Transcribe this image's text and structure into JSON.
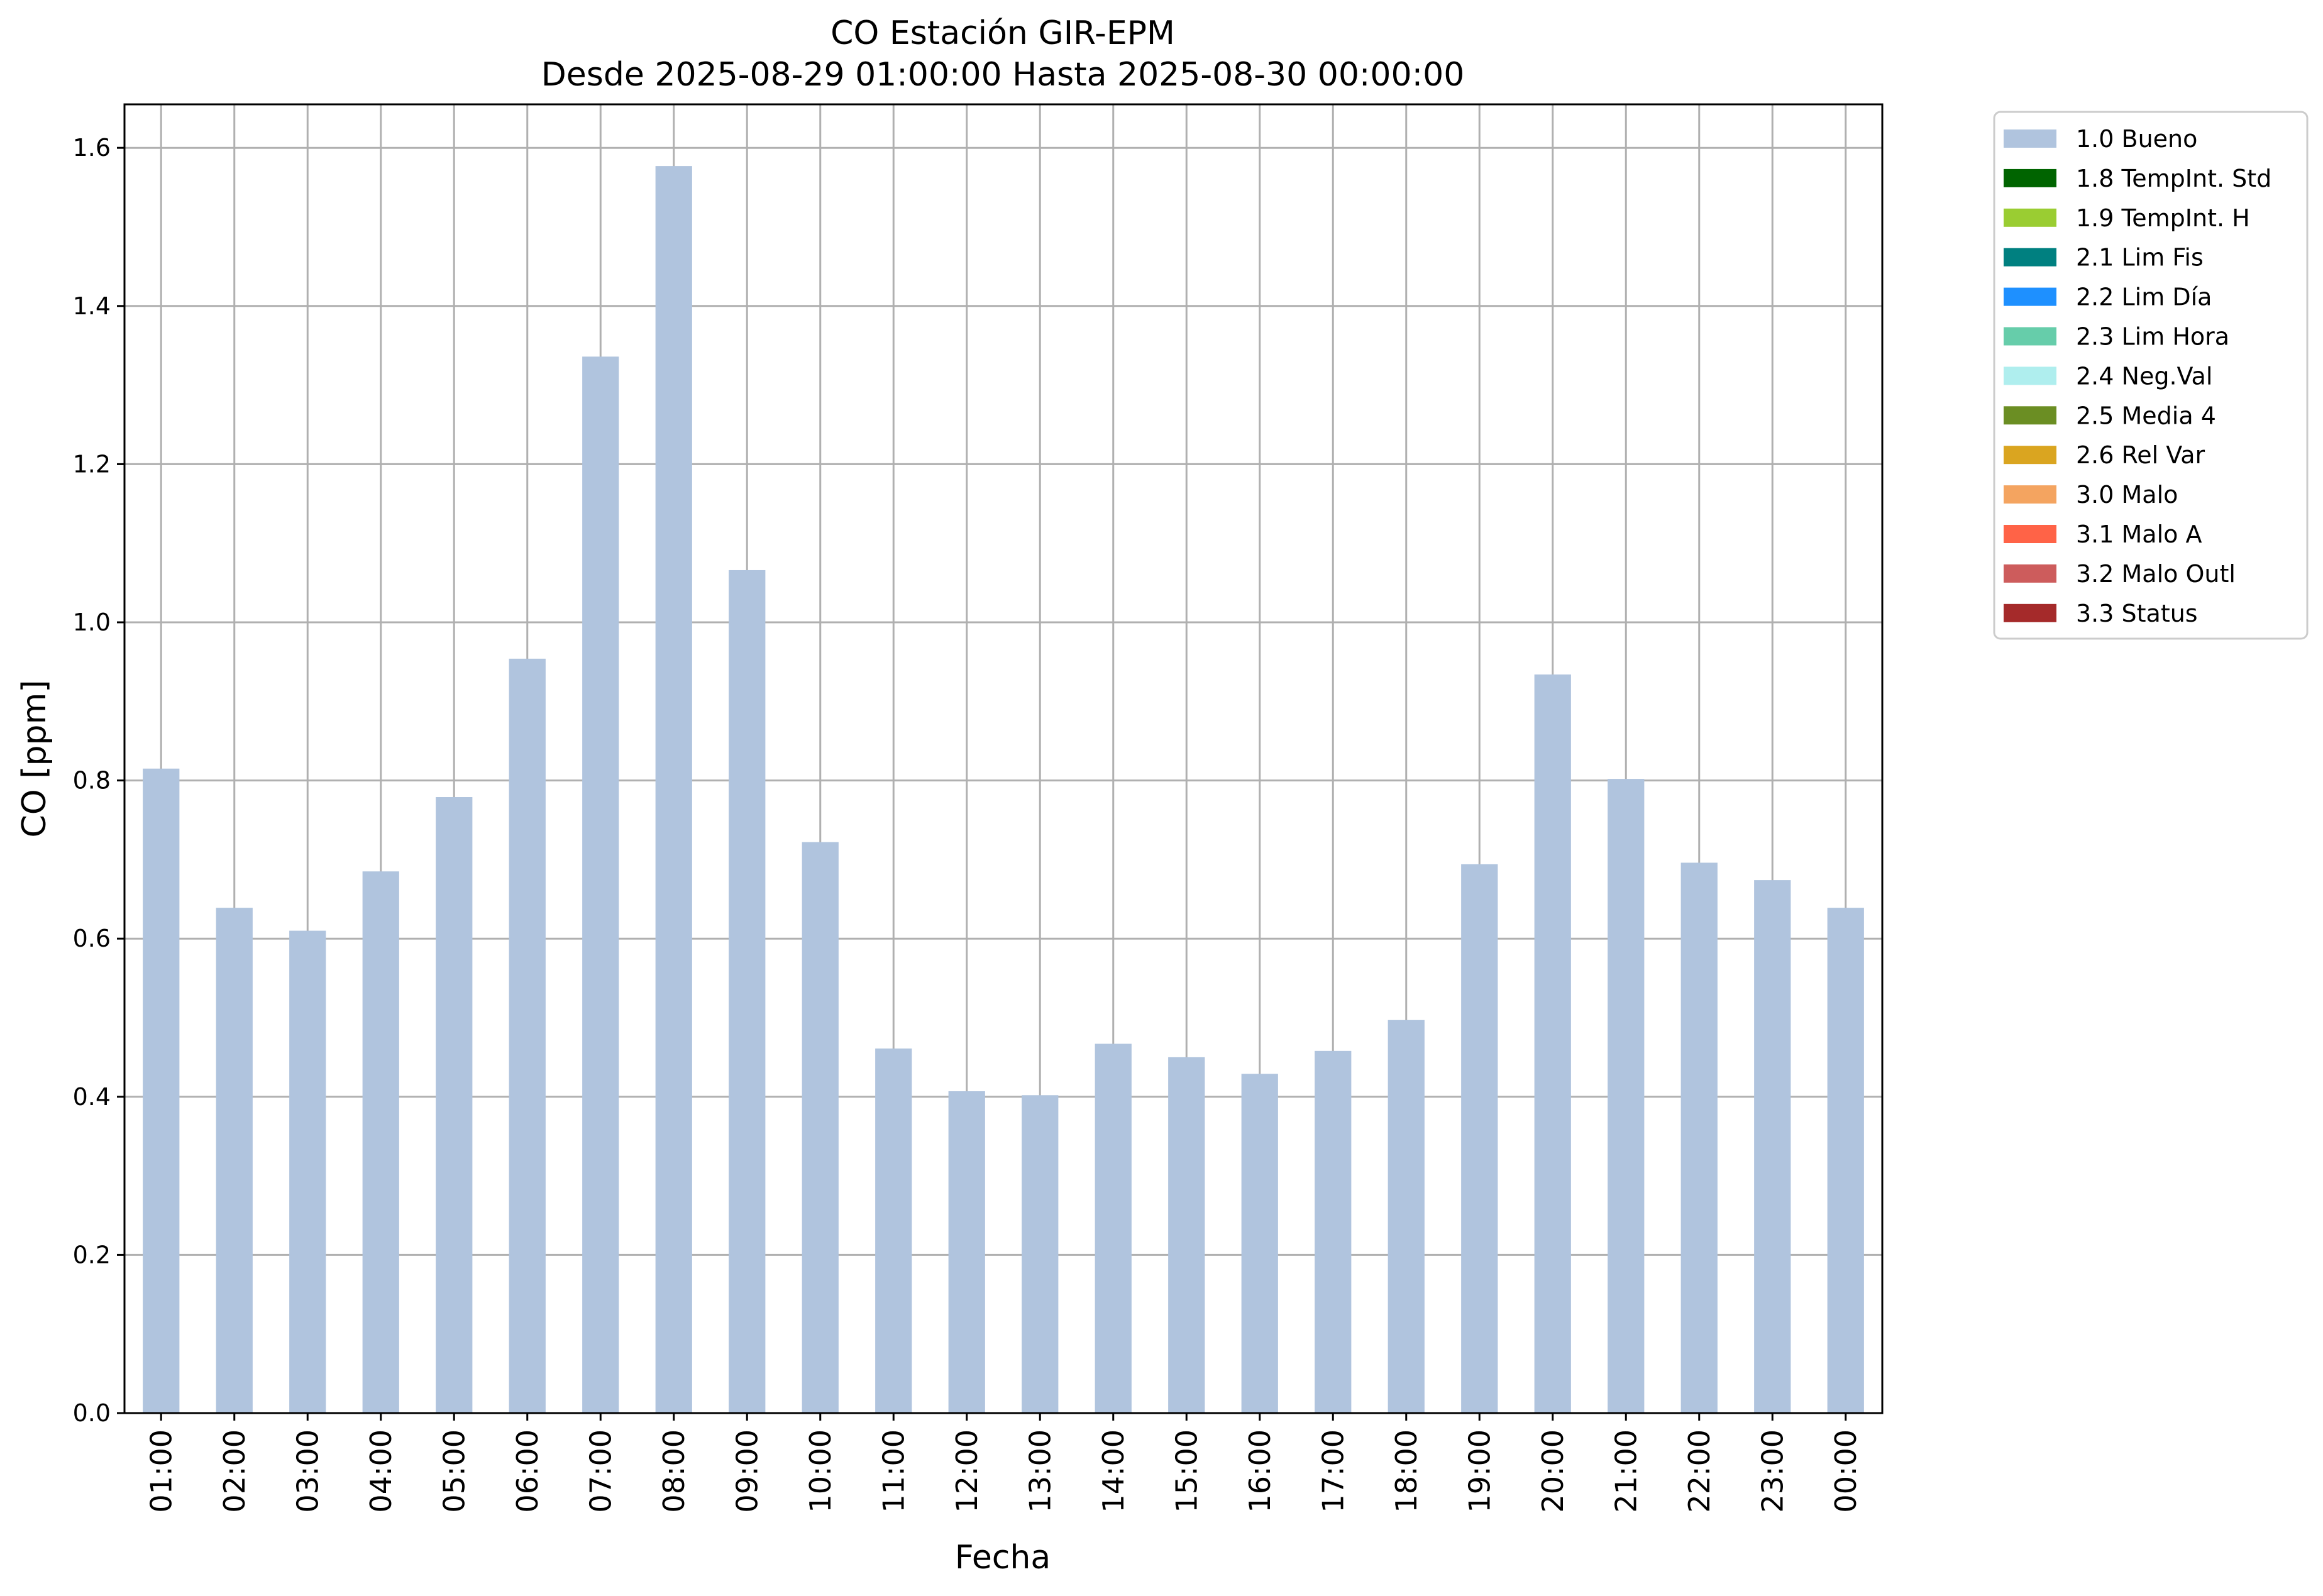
{
  "chart_data": {
    "type": "bar",
    "title": "CO Estación GIR-EPM",
    "subtitle": "Desde 2025-08-29 01:00:00 Hasta 2025-08-30 00:00:00",
    "xlabel": "Fecha",
    "ylabel": "CO [ppm]",
    "ylim": [
      0,
      1.655
    ],
    "yticks": [
      0.0,
      0.2,
      0.4,
      0.6,
      0.8,
      1.0,
      1.2,
      1.4,
      1.6
    ],
    "ytick_labels": [
      "0.0",
      "0.2",
      "0.4",
      "0.6",
      "0.8",
      "1.0",
      "1.2",
      "1.4",
      "1.6"
    ],
    "grid": true,
    "legend_position": "outside-top-right",
    "categories": [
      "01:00",
      "02:00",
      "03:00",
      "04:00",
      "05:00",
      "06:00",
      "07:00",
      "08:00",
      "09:00",
      "10:00",
      "11:00",
      "12:00",
      "13:00",
      "14:00",
      "15:00",
      "16:00",
      "17:00",
      "18:00",
      "19:00",
      "20:00",
      "21:00",
      "22:00",
      "23:00",
      "00:00"
    ],
    "series": [
      {
        "name": "1.0 Bueno",
        "color": "#b0c4de",
        "values": [
          0.815,
          0.639,
          0.61,
          0.685,
          0.779,
          0.954,
          1.336,
          1.577,
          1.066,
          0.722,
          0.461,
          0.407,
          0.402,
          0.467,
          0.45,
          0.429,
          0.458,
          0.497,
          0.694,
          0.934,
          0.802,
          0.696,
          0.674,
          0.639
        ]
      }
    ],
    "legend": [
      {
        "label": "1.0 Bueno",
        "color": "#b0c4de"
      },
      {
        "label": "1.8 TempInt. Std",
        "color": "#006400"
      },
      {
        "label": "1.9 TempInt. H",
        "color": "#9acd32"
      },
      {
        "label": "2.1 Lim Fis",
        "color": "#008080"
      },
      {
        "label": "2.2 Lim Día",
        "color": "#1e90ff"
      },
      {
        "label": "2.3 Lim Hora",
        "color": "#66cdaa"
      },
      {
        "label": "2.4 Neg.Val",
        "color": "#afeeee"
      },
      {
        "label": "2.5 Media 4",
        "color": "#6b8e23"
      },
      {
        "label": "2.6 Rel Var",
        "color": "#daa520"
      },
      {
        "label": "3.0 Malo",
        "color": "#f4a460"
      },
      {
        "label": "3.1 Malo A",
        "color": "#ff6347"
      },
      {
        "label": "3.2 Malo Outl",
        "color": "#cd5c5c"
      },
      {
        "label": "3.3 Status",
        "color": "#a52a2a"
      }
    ]
  }
}
